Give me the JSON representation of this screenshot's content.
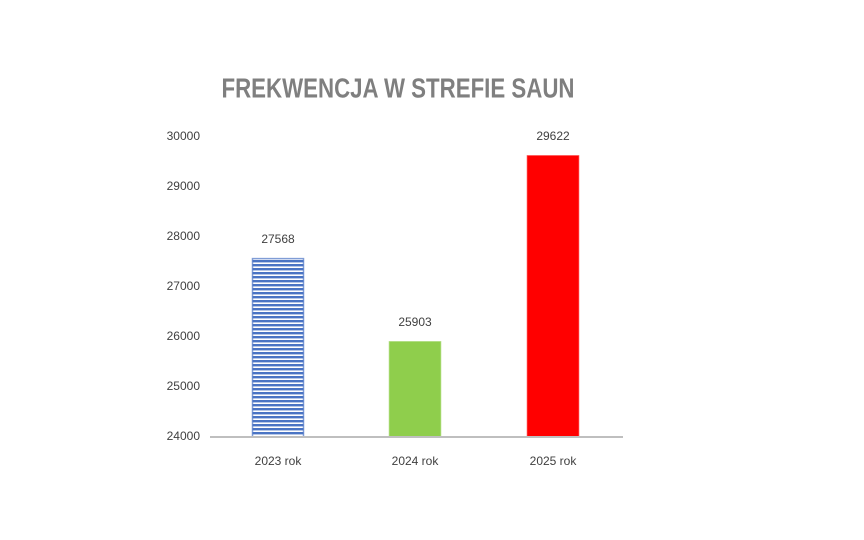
{
  "chart_data": {
    "type": "bar",
    "title": "FREKWENCJA W STREFIE SAUN",
    "categories": [
      "2023 rok",
      "2024 rok",
      "2025 rok"
    ],
    "values": [
      27568,
      25903,
      29622
    ],
    "colors": [
      "#4a74c4",
      "#8fce4c",
      "#ff0000"
    ],
    "patterns": [
      "horizontal-lines",
      "solid",
      "solid"
    ],
    "ylim": [
      24000,
      30000
    ],
    "yticks": [
      24000,
      25000,
      26000,
      27000,
      28000,
      29000,
      30000
    ],
    "grid": false
  }
}
